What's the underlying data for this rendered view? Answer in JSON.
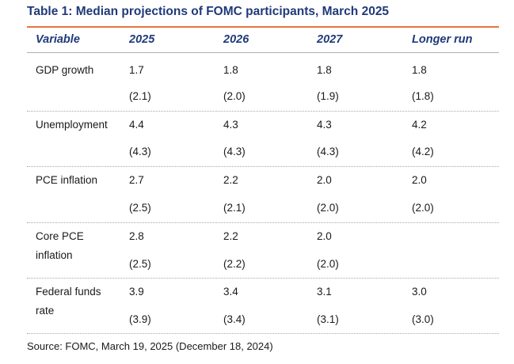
{
  "title": "Table 1: Median projections of FOMC participants, March 2025",
  "header": {
    "variable": "Variable",
    "col_2025": "2025",
    "col_2026": "2026",
    "col_2027": "2027",
    "col_longer": "Longer run"
  },
  "rows": [
    {
      "variable": "GDP growth",
      "march": [
        "1.7",
        "1.8",
        "1.8",
        "1.8"
      ],
      "december": [
        "(2.1)",
        "(2.0)",
        "(1.9)",
        "(1.8)"
      ]
    },
    {
      "variable": "Unemployment",
      "march": [
        "4.4",
        "4.3",
        "4.3",
        "4.2"
      ],
      "december": [
        "(4.3)",
        "(4.3)",
        "(4.3)",
        "(4.2)"
      ]
    },
    {
      "variable": "PCE inflation",
      "march": [
        "2.7",
        "2.2",
        "2.0",
        "2.0"
      ],
      "december": [
        "(2.5)",
        "(2.1)",
        "(2.0)",
        "(2.0)"
      ]
    },
    {
      "variable": "Core PCE inflation",
      "march": [
        "2.8",
        "2.2",
        "2.0",
        ""
      ],
      "december": [
        "(2.5)",
        "(2.2)",
        "(2.0)",
        ""
      ]
    },
    {
      "variable": "Federal funds rate",
      "march": [
        "3.9",
        "3.4",
        "3.1",
        "3.0"
      ],
      "december": [
        "(3.9)",
        "(3.4)",
        "(3.1)",
        "(3.0)"
      ]
    }
  ],
  "source": "Source: FOMC, March 19, 2025 (December 18, 2024)"
}
